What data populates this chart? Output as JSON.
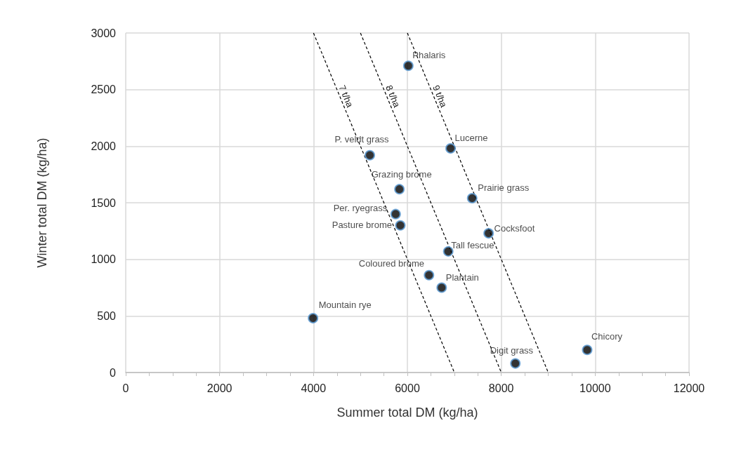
{
  "chart_data": {
    "type": "scatter",
    "xlabel": "Summer total DM (kg/ha)",
    "ylabel": "Winter total DM (kg/ha)",
    "xlim": [
      0,
      12000
    ],
    "ylim": [
      0,
      3000
    ],
    "xticks": [
      0,
      {
        "value": 500,
        "label": null
      },
      {
        "value": 1000,
        "label": null
      },
      {
        "value": 1500,
        "label": null
      },
      2000,
      {
        "value": 2500,
        "label": null
      },
      {
        "value": 3000,
        "label": null
      },
      {
        "value": 3500,
        "label": null
      },
      4000,
      {
        "value": 4500,
        "label": null
      },
      {
        "value": 5000,
        "label": null
      },
      {
        "value": 5500,
        "label": null
      },
      6000,
      {
        "value": 6500,
        "label": null
      },
      {
        "value": 7000,
        "label": null
      },
      {
        "value": 7500,
        "label": null
      },
      8000,
      {
        "value": 8500,
        "label": null
      },
      {
        "value": 9000,
        "label": null
      },
      {
        "value": 9500,
        "label": null
      },
      10000,
      {
        "value": 10500,
        "label": null
      },
      {
        "value": 11000,
        "label": null
      },
      {
        "value": 11500,
        "label": null
      },
      12000
    ],
    "yticks": [
      0,
      500,
      1000,
      1500,
      2000,
      2500,
      3000
    ],
    "grid": true,
    "marker": "circle",
    "series": [
      {
        "color": "#000000",
        "x": [
          6020,
          6920,
          7380,
          7730,
          6870,
          6460,
          6730,
          8300,
          9830,
          3990,
          5750,
          5850,
          5200,
          5830
        ],
        "values": [
          2710,
          1980,
          1540,
          1230,
          1070,
          860,
          750,
          80,
          200,
          480,
          1400,
          1300,
          1920,
          1620
        ],
        "value_labels": [
          "Phalaris",
          "Lucerne",
          "Prairie grass",
          "Cocksfoot",
          "Tall fescue",
          "Coloured brome",
          "Plantain",
          "Digit grass",
          "Chicory",
          "Mountain rye",
          "Per. ryegrass",
          "Pasture brome",
          "P. veldt grass",
          "Grazing brome"
        ]
      },
      {
        "type": "line",
        "name": "7 t/ha",
        "color": "#000000",
        "line_style": "dashed",
        "marker": "none",
        "x": [
          4000,
          7000
        ],
        "values": [
          3000,
          0
        ]
      },
      {
        "type": "line",
        "name": "8 t/ha",
        "color": "#000000",
        "line_style": "dashed",
        "marker": "none",
        "x": [
          5000,
          8000
        ],
        "values": [
          3000,
          0
        ]
      },
      {
        "type": "line",
        "name": "9 t/ha",
        "color": "#000000",
        "line_style": "dashed",
        "marker": "none",
        "x": [
          6000,
          9000
        ],
        "values": [
          3000,
          0
        ]
      }
    ]
  }
}
